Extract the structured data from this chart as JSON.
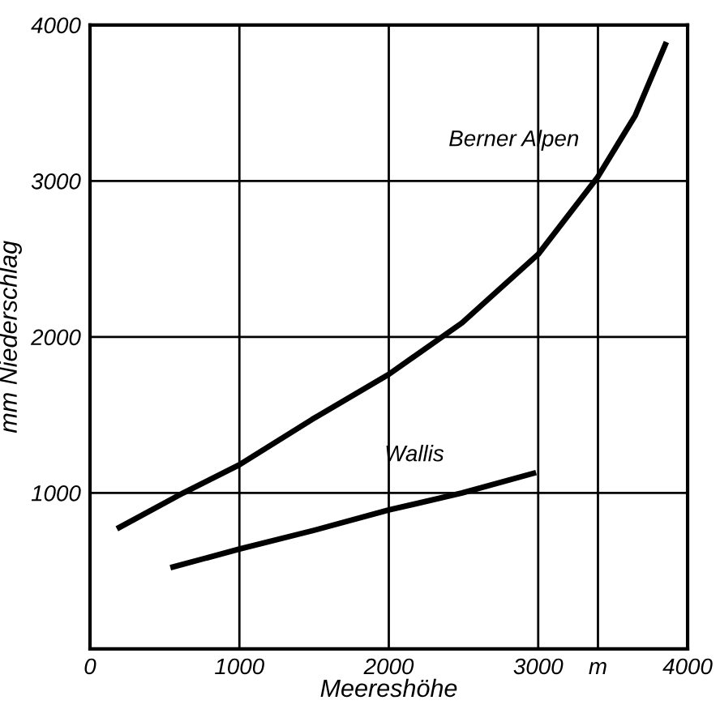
{
  "chart_data": {
    "type": "line",
    "xlabel": "Meereshöhe",
    "ylabel": "mm Niederschlag",
    "x": [
      180,
      625,
      1000,
      1485,
      2000,
      2490,
      3000,
      3395,
      3650,
      3858
    ],
    "series": [
      {
        "name": "Berner Alpen",
        "color": "#000000",
        "values": [
          770,
          1000,
          1180,
          1470,
          1760,
          2090,
          2530,
          3020,
          3420,
          3890
        ]
      },
      {
        "name": "Wallis",
        "color": "#000000",
        "x": [
          538,
          1000,
          1500,
          2000,
          2491,
          2986
        ],
        "values": [
          520,
          640,
          760,
          890,
          1000,
          1130
        ]
      }
    ],
    "xlim": [
      0,
      4000
    ],
    "ylim": [
      0,
      4000
    ],
    "xticks": [
      0,
      1000,
      2000,
      3000,
      {
        "value": 3400,
        "label": "m"
      },
      4000
    ],
    "yticks": [
      {
        "value": 0,
        "label": null
      },
      1000,
      2000,
      3000,
      4000
    ],
    "grid": true,
    "marker": "none",
    "line_style": "solid"
  }
}
